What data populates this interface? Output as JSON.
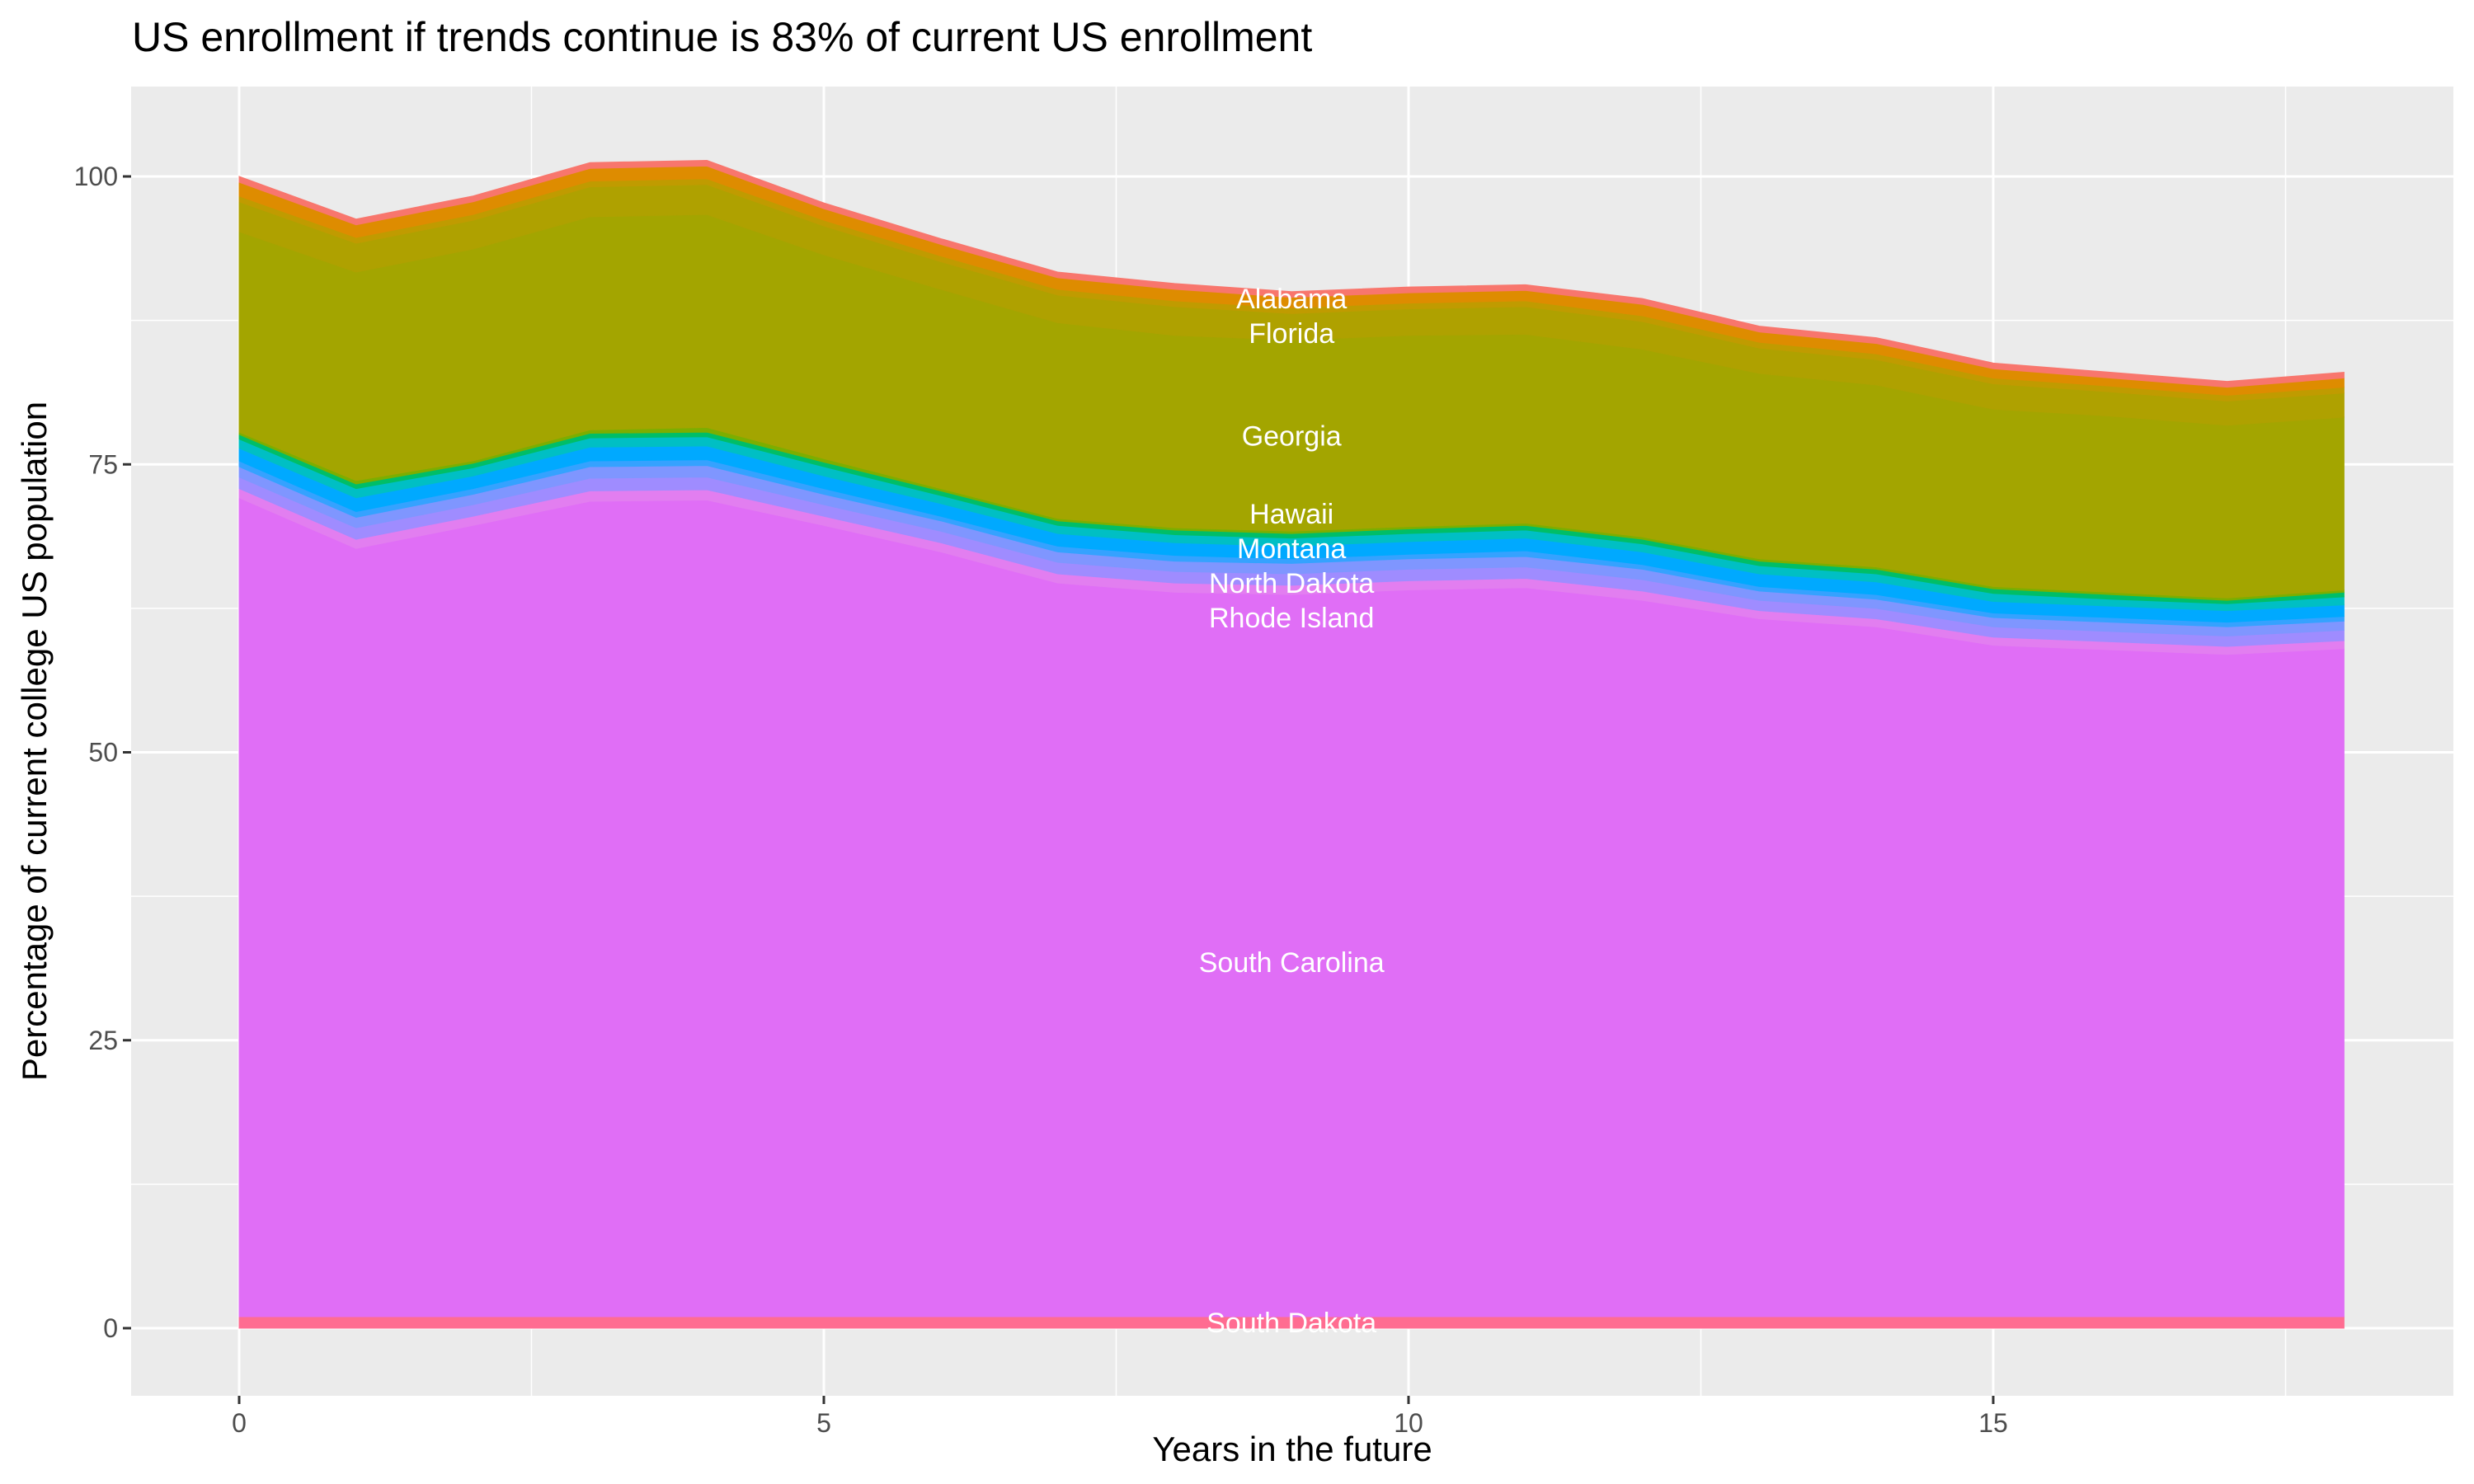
{
  "chart_data": {
    "type": "area",
    "stacked": true,
    "title": "US enrollment if trends continue is 83% of current US enrollment",
    "xlabel": "Years in the future",
    "ylabel": "Percentage of current college US population",
    "xlim": [
      -0.9,
      18.9
    ],
    "ylim": [
      -5,
      106
    ],
    "x_ticks": [
      0,
      5,
      10,
      15
    ],
    "y_ticks": [
      0,
      25,
      50,
      75,
      100
    ],
    "grid": true,
    "legend": "none",
    "x": [
      0,
      1,
      2,
      3,
      4,
      5,
      6,
      7,
      8,
      9,
      10,
      11,
      12,
      13,
      14,
      15,
      16,
      17,
      18
    ],
    "series": [
      {
        "name": "South Dakota",
        "color": "#FF6C91",
        "values": [
          1.0,
          1.0,
          1.0,
          1.0,
          1.0,
          1.0,
          1.0,
          1.0,
          1.0,
          1.0,
          1.0,
          1.0,
          1.0,
          1.0,
          1.0,
          1.0,
          1.0,
          1.0,
          1.0
        ]
      },
      {
        "name": "South Carolina",
        "color": "#E06EF6",
        "values": [
          71.1,
          66.7,
          68.7,
          70.8,
          70.9,
          68.7,
          66.4,
          63.7,
          62.9,
          62.7,
          63.1,
          63.3,
          62.2,
          60.6,
          59.9,
          58.3,
          57.9,
          57.5,
          58.0
        ]
      },
      {
        "name": "Rhode Island",
        "color": "#E27EF0",
        "values": [
          0.8,
          0.8,
          0.8,
          0.9,
          0.9,
          0.8,
          0.8,
          0.8,
          0.8,
          0.8,
          0.8,
          0.8,
          0.8,
          0.7,
          0.7,
          0.7,
          0.7,
          0.7,
          0.7
        ]
      },
      {
        "color": "#9F8CFF",
        "values": [
          1.0,
          1.0,
          1.0,
          1.1,
          1.1,
          1.0,
          1.0,
          1.0,
          1.0,
          1.0,
          1.0,
          1.0,
          1.0,
          0.9,
          0.9,
          0.9,
          0.9,
          0.9,
          0.9
        ]
      },
      {
        "name": "North Dakota",
        "color": "#7F96FF",
        "values": [
          0.9,
          0.9,
          0.9,
          1.0,
          1.0,
          0.9,
          0.9,
          0.9,
          0.9,
          0.9,
          0.9,
          0.9,
          0.9,
          0.8,
          0.8,
          0.8,
          0.8,
          0.8,
          0.8
        ]
      },
      {
        "color": "#35A2FF",
        "values": [
          0.5,
          0.5,
          0.5,
          0.5,
          0.5,
          0.5,
          0.4,
          0.5,
          0.5,
          0.4,
          0.4,
          0.5,
          0.4,
          0.4,
          0.4,
          0.4,
          0.4,
          0.4,
          0.4
        ]
      },
      {
        "name": "Montana",
        "color": "#00A9FF",
        "values": [
          1.1,
          1.2,
          1.1,
          1.2,
          1.2,
          1.1,
          1.1,
          1.1,
          1.1,
          1.1,
          1.1,
          1.1,
          1.1,
          1.1,
          1.1,
          1.0,
          1.0,
          1.0,
          1.0
        ]
      },
      {
        "color": "#00BFC4",
        "values": [
          0.8,
          0.8,
          0.7,
          0.8,
          0.8,
          0.8,
          0.7,
          0.7,
          0.7,
          0.7,
          0.7,
          0.7,
          0.7,
          0.7,
          0.7,
          0.7,
          0.6,
          0.6,
          0.7
        ]
      },
      {
        "name": "Hawaii",
        "color": "#00BE67",
        "values": [
          0.4,
          0.4,
          0.4,
          0.4,
          0.4,
          0.4,
          0.4,
          0.4,
          0.4,
          0.4,
          0.4,
          0.4,
          0.4,
          0.4,
          0.4,
          0.4,
          0.4,
          0.3,
          0.4
        ]
      },
      {
        "color": "#7CAE00",
        "values": [
          0.2,
          0.3,
          0.2,
          0.3,
          0.4,
          0.3,
          0.2,
          0.2,
          0.2,
          0.2,
          0.2,
          0.2,
          0.2,
          0.2,
          0.2,
          0.2,
          0.2,
          0.2,
          0.2
        ]
      },
      {
        "name": "Georgia",
        "color": "#A3A500",
        "values": [
          17.4,
          18.1,
          18.4,
          18.5,
          18.5,
          17.7,
          17.3,
          17.0,
          16.7,
          16.6,
          16.6,
          16.4,
          16.3,
          16.1,
          15.8,
          15.4,
          15.3,
          15.0,
          15.0
        ]
      },
      {
        "name": "Florida",
        "color": "#AFA100",
        "values": [
          2.6,
          2.5,
          2.5,
          2.6,
          2.6,
          2.5,
          2.4,
          2.4,
          2.5,
          2.3,
          2.3,
          2.4,
          2.4,
          2.2,
          2.2,
          2.2,
          2.1,
          2.1,
          2.1
        ]
      },
      {
        "color": "#C09B00",
        "values": [
          0.5,
          0.5,
          0.5,
          0.5,
          0.5,
          0.5,
          0.5,
          0.5,
          0.5,
          0.5,
          0.5,
          0.5,
          0.5,
          0.5,
          0.5,
          0.5,
          0.5,
          0.5,
          0.5
        ]
      },
      {
        "color": "#DE8C00",
        "values": [
          1.2,
          1.1,
          1.1,
          1.1,
          1.1,
          1.0,
          1.0,
          1.0,
          1.0,
          0.9,
          0.9,
          0.9,
          1.0,
          0.9,
          0.9,
          0.8,
          0.7,
          0.7,
          0.8
        ]
      },
      {
        "name": "Alabama",
        "color": "#F8766D",
        "values": [
          0.5,
          0.5,
          0.5,
          0.5,
          0.5,
          0.5,
          0.5,
          0.5,
          0.5,
          0.5,
          0.5,
          0.5,
          0.5,
          0.5,
          0.5,
          0.5,
          0.5,
          0.5,
          0.5
        ]
      }
    ],
    "annotations": [
      {
        "text": "Alabama",
        "x": 9,
        "y": 89.3
      },
      {
        "text": "Florida",
        "x": 9,
        "y": 86.5
      },
      {
        "text": "Georgia",
        "x": 9,
        "y": 77.5
      },
      {
        "text": "Hawaii",
        "x": 9,
        "y": 69.0
      },
      {
        "text": "Montana",
        "x": 9,
        "y": 67.1
      },
      {
        "text": "North Dakota",
        "x": 9,
        "y": 65.3
      },
      {
        "text": "Rhode Island",
        "x": 9,
        "y": 63.4
      },
      {
        "text": "South Carolina",
        "x": 9,
        "y": 31.8
      },
      {
        "text": "South Dakota",
        "x": 9,
        "y": 0.5
      }
    ]
  }
}
